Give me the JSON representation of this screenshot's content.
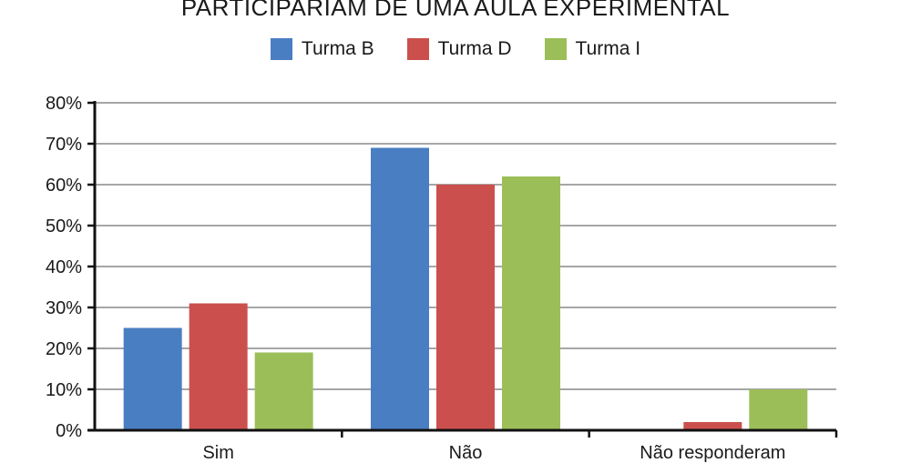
{
  "chart_data": {
    "type": "bar",
    "title": "PARTICIPARIAM DE UMA AULA EXPERIMENTAL",
    "categories": [
      "Sim",
      "Não",
      "Não responderam"
    ],
    "series": [
      {
        "name": "Turma B",
        "color": "#4A7EC2",
        "values": [
          25,
          69,
          0
        ]
      },
      {
        "name": "Turma D",
        "color": "#CB504D",
        "values": [
          31,
          60,
          2
        ]
      },
      {
        "name": "Turma I",
        "color": "#9BBE59",
        "values": [
          19,
          62,
          10
        ]
      }
    ],
    "y_ticks": [
      "0%",
      "10%",
      "20%",
      "30%",
      "40%",
      "50%",
      "60%",
      "70%",
      "80%"
    ],
    "ylim": [
      0,
      80
    ],
    "y_unit": "%",
    "grid": true,
    "legend_position": "top-center"
  }
}
